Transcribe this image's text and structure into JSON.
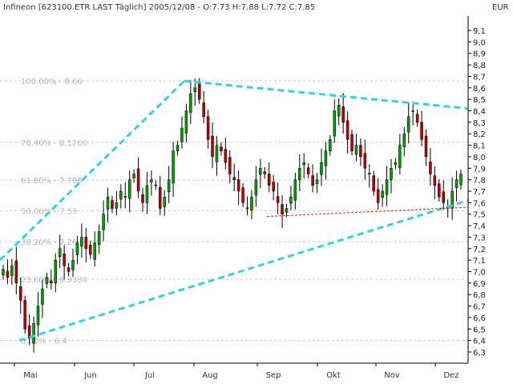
{
  "header": {
    "title": "Infineon [623100.ETR LAST Täglich] 2005/12/08 - O:7.73 H:7.88 L:7.72 C:7.85",
    "currency": "EUR"
  },
  "chart_data": {
    "type": "candlestick",
    "x_axis": {
      "labels": [
        "Mai",
        "Jun",
        "Jul",
        "Aug",
        "Sep",
        "Okt",
        "Nov",
        "Dez"
      ]
    },
    "y_axis": {
      "min": 6.3,
      "max": 9.1,
      "step": 0.1,
      "tick_labels": [
        "9,1",
        "9,0",
        "8,9",
        "8,8",
        "8,7",
        "8,6",
        "8,5",
        "8,4",
        "8,3",
        "8,2",
        "8,1",
        "8,0",
        "7,9",
        "7,8",
        "7,7",
        "7,6",
        "7,5",
        "7,4",
        "7,3",
        "7,2",
        "7,1",
        "7,0",
        "6,9",
        "6,8",
        "6,7",
        "6,6",
        "6,5",
        "6,4",
        "6,3"
      ]
    },
    "grid": true,
    "fibonacci_levels": [
      {
        "label": "100.00% - 8.66",
        "value": 8.66
      },
      {
        "label": "76.40% - 8.1266",
        "value": 8.1266
      },
      {
        "label": "61.80% - 7.796",
        "value": 7.796
      },
      {
        "label": "50.00% - 7.53",
        "value": 7.53
      },
      {
        "label": "38.20% - 7.26",
        "value": 7.26
      },
      {
        "label": "23.60% - 6.9334",
        "value": 6.9334
      },
      {
        "label": "0.00% - 6.4",
        "value": 6.4
      }
    ],
    "close_series": [
      7.02,
      6.95,
      7.05,
      6.9,
      6.75,
      6.5,
      6.42,
      6.55,
      6.7,
      6.85,
      6.95,
      6.9,
      7.1,
      7.2,
      7.05,
      7.0,
      7.1,
      7.25,
      7.3,
      7.2,
      7.15,
      7.25,
      7.35,
      7.5,
      7.65,
      7.55,
      7.6,
      7.7,
      7.65,
      7.8,
      7.85,
      7.7,
      7.6,
      7.75,
      7.8,
      7.75,
      7.55,
      7.65,
      7.8,
      8.05,
      8.1,
      8.25,
      8.4,
      8.55,
      8.6,
      8.5,
      8.35,
      8.15,
      8.0,
      8.1,
      8.05,
      7.95,
      7.85,
      7.8,
      7.7,
      7.6,
      7.55,
      7.65,
      7.8,
      7.9,
      7.85,
      7.75,
      7.7,
      7.6,
      7.5,
      7.55,
      7.65,
      7.8,
      7.9,
      7.95,
      7.85,
      7.75,
      7.8,
      7.95,
      8.05,
      8.15,
      8.4,
      8.45,
      8.3,
      8.15,
      8.05,
      8.1,
      8.0,
      7.9,
      7.85,
      7.7,
      7.6,
      7.7,
      7.8,
      7.9,
      7.95,
      8.1,
      8.2,
      8.35,
      8.4,
      8.3,
      8.15,
      8.0,
      7.85,
      7.75,
      7.65,
      7.6,
      7.55,
      7.7,
      7.8,
      7.85
    ]
  },
  "colors": {
    "up_candle": "#00a000",
    "down_candle": "#c00000",
    "trendline": "#2fd3e6",
    "support": "#d02020",
    "grid": "#c8c8c8"
  }
}
